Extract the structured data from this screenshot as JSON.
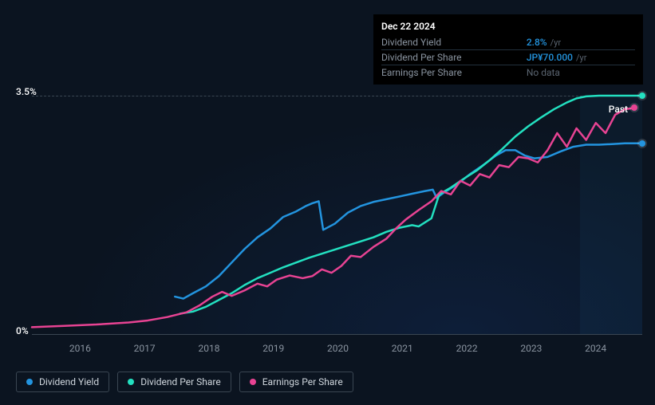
{
  "chart": {
    "type": "line",
    "background_color": "#0b1420",
    "grid_color": "#3a4652",
    "x": {
      "min": 2015.5,
      "max": 2024.97,
      "ticks": [
        2016,
        2017,
        2018,
        2019,
        2020,
        2021,
        2022,
        2023,
        2024
      ],
      "tick_labels": [
        "2016",
        "2017",
        "2018",
        "2019",
        "2020",
        "2021",
        "2022",
        "2023",
        "2024"
      ]
    },
    "y": {
      "min": 0,
      "max": 3.5,
      "ticks": [
        0,
        3.5
      ],
      "tick_labels": [
        "0%",
        "3.5%"
      ]
    },
    "past_label": "Past",
    "shaded_from_x": 2024.0,
    "series": [
      {
        "id": "dividend_yield",
        "label": "Dividend Yield",
        "color": "#2394df",
        "line_width": 2.5,
        "data": [
          [
            2017.72,
            0.55
          ],
          [
            2017.85,
            0.52
          ],
          [
            2018.0,
            0.6
          ],
          [
            2018.2,
            0.7
          ],
          [
            2018.4,
            0.85
          ],
          [
            2018.6,
            1.05
          ],
          [
            2018.8,
            1.25
          ],
          [
            2019.0,
            1.42
          ],
          [
            2019.2,
            1.55
          ],
          [
            2019.4,
            1.72
          ],
          [
            2019.6,
            1.8
          ],
          [
            2019.75,
            1.88
          ],
          [
            2019.85,
            1.92
          ],
          [
            2019.95,
            1.95
          ],
          [
            2020.02,
            1.53
          ],
          [
            2020.2,
            1.62
          ],
          [
            2020.4,
            1.78
          ],
          [
            2020.6,
            1.88
          ],
          [
            2020.8,
            1.94
          ],
          [
            2021.0,
            1.98
          ],
          [
            2021.2,
            2.02
          ],
          [
            2021.4,
            2.06
          ],
          [
            2021.6,
            2.1
          ],
          [
            2021.72,
            2.12
          ],
          [
            2021.78,
            2.0
          ],
          [
            2021.9,
            2.08
          ],
          [
            2022.1,
            2.2
          ],
          [
            2022.3,
            2.35
          ],
          [
            2022.5,
            2.48
          ],
          [
            2022.7,
            2.62
          ],
          [
            2022.85,
            2.7
          ],
          [
            2023.0,
            2.7
          ],
          [
            2023.15,
            2.62
          ],
          [
            2023.3,
            2.58
          ],
          [
            2023.5,
            2.6
          ],
          [
            2023.7,
            2.68
          ],
          [
            2023.9,
            2.75
          ],
          [
            2024.1,
            2.78
          ],
          [
            2024.3,
            2.78
          ],
          [
            2024.5,
            2.79
          ],
          [
            2024.7,
            2.8
          ],
          [
            2024.85,
            2.8
          ],
          [
            2024.97,
            2.8
          ]
        ]
      },
      {
        "id": "dividend_per_share",
        "label": "Dividend Per Share",
        "color": "#23e0c0",
        "line_width": 2.5,
        "data": [
          [
            2017.8,
            0.3
          ],
          [
            2018.0,
            0.33
          ],
          [
            2018.2,
            0.4
          ],
          [
            2018.4,
            0.5
          ],
          [
            2018.6,
            0.6
          ],
          [
            2018.8,
            0.72
          ],
          [
            2019.0,
            0.82
          ],
          [
            2019.2,
            0.9
          ],
          [
            2019.4,
            0.98
          ],
          [
            2019.6,
            1.05
          ],
          [
            2019.8,
            1.12
          ],
          [
            2020.0,
            1.18
          ],
          [
            2020.2,
            1.24
          ],
          [
            2020.4,
            1.3
          ],
          [
            2020.6,
            1.36
          ],
          [
            2020.8,
            1.42
          ],
          [
            2021.0,
            1.5
          ],
          [
            2021.2,
            1.56
          ],
          [
            2021.4,
            1.6
          ],
          [
            2021.5,
            1.58
          ],
          [
            2021.7,
            1.7
          ],
          [
            2021.82,
            2.05
          ],
          [
            2022.0,
            2.15
          ],
          [
            2022.2,
            2.28
          ],
          [
            2022.4,
            2.4
          ],
          [
            2022.6,
            2.55
          ],
          [
            2022.8,
            2.72
          ],
          [
            2023.0,
            2.9
          ],
          [
            2023.2,
            3.05
          ],
          [
            2023.4,
            3.18
          ],
          [
            2023.6,
            3.3
          ],
          [
            2023.8,
            3.4
          ],
          [
            2023.95,
            3.46
          ],
          [
            2024.1,
            3.49
          ],
          [
            2024.3,
            3.5
          ],
          [
            2024.5,
            3.5
          ],
          [
            2024.7,
            3.5
          ],
          [
            2024.85,
            3.5
          ],
          [
            2024.97,
            3.5
          ]
        ]
      },
      {
        "id": "earnings_per_share",
        "label": "Earnings Per Share",
        "color": "#e84393",
        "line_width": 2.5,
        "data": [
          [
            2015.5,
            0.1
          ],
          [
            2016.0,
            0.12
          ],
          [
            2016.5,
            0.14
          ],
          [
            2017.0,
            0.17
          ],
          [
            2017.3,
            0.2
          ],
          [
            2017.6,
            0.25
          ],
          [
            2017.9,
            0.32
          ],
          [
            2018.1,
            0.42
          ],
          [
            2018.3,
            0.55
          ],
          [
            2018.45,
            0.62
          ],
          [
            2018.6,
            0.56
          ],
          [
            2018.8,
            0.64
          ],
          [
            2019.0,
            0.74
          ],
          [
            2019.15,
            0.7
          ],
          [
            2019.3,
            0.8
          ],
          [
            2019.5,
            0.86
          ],
          [
            2019.7,
            0.82
          ],
          [
            2019.85,
            0.85
          ],
          [
            2020.0,
            0.95
          ],
          [
            2020.15,
            0.9
          ],
          [
            2020.3,
            1.0
          ],
          [
            2020.45,
            1.15
          ],
          [
            2020.6,
            1.13
          ],
          [
            2020.8,
            1.28
          ],
          [
            2021.0,
            1.4
          ],
          [
            2021.15,
            1.55
          ],
          [
            2021.3,
            1.68
          ],
          [
            2021.5,
            1.82
          ],
          [
            2021.7,
            1.95
          ],
          [
            2021.85,
            2.1
          ],
          [
            2022.0,
            2.05
          ],
          [
            2022.15,
            2.25
          ],
          [
            2022.3,
            2.18
          ],
          [
            2022.45,
            2.35
          ],
          [
            2022.6,
            2.3
          ],
          [
            2022.75,
            2.48
          ],
          [
            2022.9,
            2.45
          ],
          [
            2023.05,
            2.6
          ],
          [
            2023.2,
            2.58
          ],
          [
            2023.35,
            2.52
          ],
          [
            2023.5,
            2.7
          ],
          [
            2023.65,
            2.95
          ],
          [
            2023.8,
            2.75
          ],
          [
            2023.95,
            3.02
          ],
          [
            2024.1,
            2.85
          ],
          [
            2024.25,
            3.1
          ],
          [
            2024.4,
            2.95
          ],
          [
            2024.55,
            3.22
          ],
          [
            2024.7,
            3.3
          ],
          [
            2024.85,
            3.32
          ]
        ]
      }
    ]
  },
  "tooltip": {
    "date": "Dec 22 2024",
    "rows": [
      {
        "label": "Dividend Yield",
        "value": "2.8%",
        "unit": "/yr"
      },
      {
        "label": "Dividend Per Share",
        "value": "JP¥70.000",
        "unit": "/yr"
      },
      {
        "label": "Earnings Per Share",
        "value": null,
        "no_data": "No data"
      }
    ]
  }
}
